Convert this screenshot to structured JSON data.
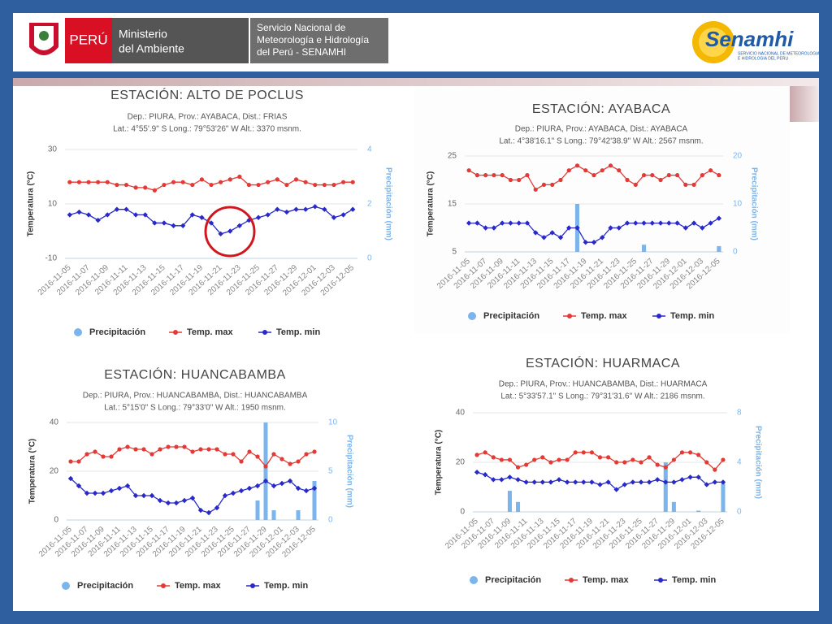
{
  "header": {
    "country": "PERÚ",
    "ministry": [
      "Ministerio",
      "del Ambiente"
    ],
    "service": [
      "Servicio Nacional de",
      "Meteorología e Hidrología",
      "del Perú - SENAMHI"
    ],
    "logo": "Senamhi",
    "logo_caption": [
      "SERVICIO NACIONAL DE METEOROLOGIA",
      "E HIDROLOGIA DEL PERU"
    ]
  },
  "chart_data": [
    {
      "type": "combo",
      "title": "ESTACIÓN: ALTO DE POCLUS",
      "subtitle": [
        "Dep.: PIURA, Prov.: AYABACA, Dist.: FRIAS",
        "Lat.: 4°55'.9\" S Long.: 79°53'26\" W Alt.: 3370 msnm."
      ],
      "ylabel": "Temperatura (°C)",
      "y2label": "Precipitación (mm)",
      "categories": [
        "2016-11-05",
        null,
        "2016-11-07",
        null,
        "2016-11-09",
        null,
        "2016-11-11",
        null,
        "2016-11-13",
        null,
        "2016-11-15",
        null,
        "2016-11-17",
        null,
        "2016-11-19",
        null,
        "2016-11-21",
        null,
        "2016-11-23",
        null,
        "2016-11-25",
        null,
        "2016-11-27",
        null,
        "2016-11-29",
        null,
        "2016-12-01",
        null,
        "2016-12-03",
        null,
        "2016-12-05"
      ],
      "ylim": [
        -10,
        30
      ],
      "yticks": [
        -10,
        10,
        30
      ],
      "y2lim": [
        0,
        4
      ],
      "y2ticks": [
        0,
        2,
        4
      ],
      "series": [
        {
          "name": "Precipitación",
          "type": "bar",
          "axis": "y2",
          "color": "#7cb5ec",
          "values": [
            0,
            0,
            0,
            0,
            0,
            0,
            0,
            0,
            0,
            0,
            0,
            0,
            0,
            0,
            0,
            0,
            0,
            0,
            0,
            0,
            0,
            0,
            0,
            0,
            0,
            0,
            0,
            0,
            0,
            0,
            0
          ]
        },
        {
          "name": "Temp. max",
          "type": "line",
          "color": "#e53935",
          "values": [
            18,
            18,
            18,
            18,
            18,
            17,
            17,
            16,
            16,
            15,
            17,
            18,
            18,
            17,
            19,
            17,
            18,
            19,
            20,
            17,
            17,
            18,
            19,
            17,
            19,
            18,
            17,
            17,
            17,
            18,
            18
          ]
        },
        {
          "name": "Temp. min",
          "type": "line",
          "color": "#2929c9",
          "values": [
            6,
            7,
            6,
            4,
            6,
            8,
            8,
            6,
            6,
            3,
            3,
            2,
            2,
            6,
            5,
            3,
            -1,
            0,
            2,
            4,
            5,
            6,
            8,
            7,
            8,
            8,
            9,
            8,
            5,
            6,
            8
          ]
        }
      ]
    },
    {
      "type": "combo",
      "title": "ESTACIÓN: AYABACA",
      "subtitle": [
        "Dep.: PIURA, Prov.: AYABACA, Dist.: AYABACA",
        "Lat.: 4°38'16.1\" S Long.: 79°42'38.9\" W Alt.: 2567 msnm."
      ],
      "ylabel": "Temperatura (°C)",
      "y2label": "Precipitación (mm)",
      "categories": [
        "2016-11-05",
        null,
        "2016-11-07",
        null,
        "2016-11-09",
        null,
        "2016-11-11",
        null,
        "2016-11-13",
        null,
        "2016-11-15",
        null,
        "2016-11-17",
        null,
        "2016-11-19",
        null,
        "2016-11-21",
        null,
        "2016-11-23",
        null,
        "2016-11-25",
        null,
        "2016-11-27",
        null,
        "2016-11-29",
        null,
        "2016-12-01",
        null,
        "2016-12-03",
        null,
        "2016-12-05"
      ],
      "ylim": [
        5,
        25
      ],
      "yticks": [
        5,
        15,
        25
      ],
      "y2lim": [
        0,
        20
      ],
      "y2ticks": [
        0,
        10,
        20
      ],
      "series": [
        {
          "name": "Precipitación",
          "type": "bar",
          "axis": "y2",
          "color": "#7cb5ec",
          "values": [
            0,
            0,
            0,
            0,
            0,
            0,
            0,
            0,
            0,
            0,
            0,
            0,
            0,
            10,
            0,
            0,
            0,
            0,
            0,
            0,
            0,
            1.5,
            0,
            0,
            0,
            0,
            0,
            0,
            0,
            0,
            1.2
          ]
        },
        {
          "name": "Temp. max",
          "type": "line",
          "color": "#e53935",
          "values": [
            22,
            21,
            21,
            21,
            21,
            20,
            20,
            21,
            18,
            19,
            19,
            20,
            22,
            23,
            22,
            21,
            22,
            23,
            22,
            20,
            19,
            21,
            21,
            20,
            21,
            21,
            19,
            19,
            21,
            22,
            21
          ]
        },
        {
          "name": "Temp. min",
          "type": "line",
          "color": "#2929c9",
          "values": [
            11,
            11,
            10,
            10,
            11,
            11,
            11,
            11,
            9,
            8,
            9,
            8,
            10,
            10,
            7,
            7,
            8,
            10,
            10,
            11,
            11,
            11,
            11,
            11,
            11,
            11,
            10,
            11,
            10,
            11,
            12
          ]
        }
      ]
    },
    {
      "type": "combo",
      "title": "ESTACIÓN: HUANCABAMBA",
      "subtitle": [
        "Dep.: PIURA, Prov.: HUANCABAMBA, Dist.: HUANCABAMBA",
        "Lat.: 5°15'0\" S Long.: 79°33'0\" W Alt.: 1950 msnm."
      ],
      "ylabel": "Temperatura (°C)",
      "y2label": "Precipitación (mm)",
      "categories": [
        "2016-11-05",
        null,
        "2016-11-07",
        null,
        "2016-11-09",
        null,
        "2016-11-11",
        null,
        "2016-11-13",
        null,
        "2016-11-15",
        null,
        "2016-11-17",
        null,
        "2016-11-19",
        null,
        "2016-11-21",
        null,
        "2016-11-23",
        null,
        "2016-11-25",
        null,
        "2016-11-27",
        null,
        "2016-11-29",
        null,
        "2016-12-01",
        null,
        "2016-12-03",
        null,
        "2016-12-05"
      ],
      "ylim": [
        0,
        40
      ],
      "yticks": [
        0,
        20,
        40
      ],
      "y2lim": [
        0,
        10
      ],
      "y2ticks": [
        0,
        5,
        10
      ],
      "series": [
        {
          "name": "Precipitación",
          "type": "bar",
          "axis": "y2",
          "color": "#7cb5ec",
          "values": [
            0,
            0,
            0,
            0,
            0,
            0,
            0,
            0,
            0,
            0,
            0,
            0,
            0,
            0,
            0,
            0,
            0,
            0,
            0,
            0,
            0,
            0,
            0,
            2,
            10,
            1,
            0,
            0,
            1,
            0,
            4
          ]
        },
        {
          "name": "Temp. max",
          "type": "line",
          "color": "#e53935",
          "values": [
            24,
            24,
            27,
            28,
            26,
            26,
            29,
            30,
            29,
            29,
            27,
            29,
            30,
            30,
            30,
            28,
            29,
            29,
            29,
            27,
            27,
            24,
            28,
            26,
            22,
            27,
            25,
            23,
            24,
            27,
            28
          ]
        },
        {
          "name": "Temp. min",
          "type": "line",
          "color": "#2929c9",
          "values": [
            17,
            14,
            11,
            11,
            11,
            12,
            13,
            14,
            10,
            10,
            10,
            8,
            7,
            7,
            8,
            9,
            4,
            3,
            5,
            10,
            11,
            12,
            13,
            14,
            16,
            14,
            15,
            16,
            13,
            12,
            13
          ]
        }
      ]
    },
    {
      "type": "combo",
      "title": "ESTACIÓN: HUARMACA",
      "subtitle": [
        "Dep.: PIURA, Prov.: HUANCABAMBA, Dist.: HUARMACA",
        "Lat.: 5°33'57.1\" S Long.: 79°31'31.6\" W Alt.: 2186 msnm."
      ],
      "ylabel": "Temperatura (°C)",
      "y2label": "Precipitación (mm)",
      "categories": [
        "2016-11-05",
        null,
        "2016-11-07",
        null,
        "2016-11-09",
        null,
        "2016-11-11",
        null,
        "2016-11-13",
        null,
        "2016-11-15",
        null,
        "2016-11-17",
        null,
        "2016-11-19",
        null,
        "2016-11-21",
        null,
        "2016-11-23",
        null,
        "2016-11-25",
        null,
        "2016-11-27",
        null,
        "2016-11-29",
        null,
        "2016-12-01",
        null,
        "2016-12-03",
        null,
        "2016-12-05"
      ],
      "ylim": [
        0,
        40
      ],
      "yticks": [
        0,
        20,
        40
      ],
      "y2lim": [
        0,
        8
      ],
      "y2ticks": [
        0,
        4,
        8
      ],
      "series": [
        {
          "name": "Precipitación",
          "type": "bar",
          "axis": "y2",
          "color": "#7cb5ec",
          "values": [
            0,
            0,
            0,
            0,
            1.7,
            0.8,
            0,
            0,
            0,
            0,
            0,
            0,
            0,
            0,
            0,
            0,
            0,
            0,
            0,
            0,
            0,
            0,
            0,
            4,
            0.8,
            0,
            0,
            0.1,
            0,
            0,
            2.3
          ]
        },
        {
          "name": "Temp. max",
          "type": "line",
          "color": "#e53935",
          "values": [
            23,
            24,
            22,
            21,
            21,
            18,
            19,
            21,
            22,
            20,
            21,
            21,
            24,
            24,
            24,
            22,
            22,
            20,
            20,
            21,
            20,
            22,
            19,
            18,
            21,
            24,
            24,
            23,
            20,
            17,
            21
          ]
        },
        {
          "name": "Temp. min",
          "type": "line",
          "color": "#2929c9",
          "values": [
            16,
            15,
            13,
            13,
            14,
            13,
            12,
            12,
            12,
            12,
            13,
            12,
            12,
            12,
            12,
            11,
            12,
            9,
            11,
            12,
            12,
            12,
            13,
            12,
            12,
            13,
            14,
            14,
            11,
            12,
            12
          ]
        }
      ]
    }
  ]
}
